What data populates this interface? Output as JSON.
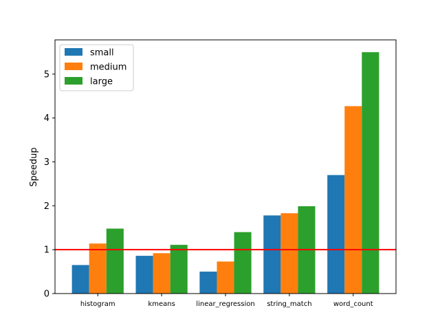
{
  "chart_data": {
    "type": "bar",
    "title": "",
    "xlabel": "",
    "ylabel": "Speedup",
    "categories": [
      "histogram",
      "kmeans",
      "linear_regression",
      "string_match",
      "word_count"
    ],
    "series": [
      {
        "name": "small",
        "color": "#1f77b4",
        "values": [
          0.65,
          0.86,
          0.5,
          1.78,
          2.7
        ]
      },
      {
        "name": "medium",
        "color": "#ff7f0e",
        "values": [
          1.14,
          0.92,
          0.73,
          1.83,
          4.27
        ]
      },
      {
        "name": "large",
        "color": "#2ca02c",
        "values": [
          1.48,
          1.11,
          1.4,
          1.99,
          5.5
        ]
      }
    ],
    "ylim": [
      0,
      5.78
    ],
    "yticks": [
      "0",
      "1",
      "2",
      "3",
      "4",
      "5"
    ],
    "reference_line": {
      "y": 1,
      "color": "#ff0000"
    },
    "legend": "top-left",
    "grid": false
  }
}
